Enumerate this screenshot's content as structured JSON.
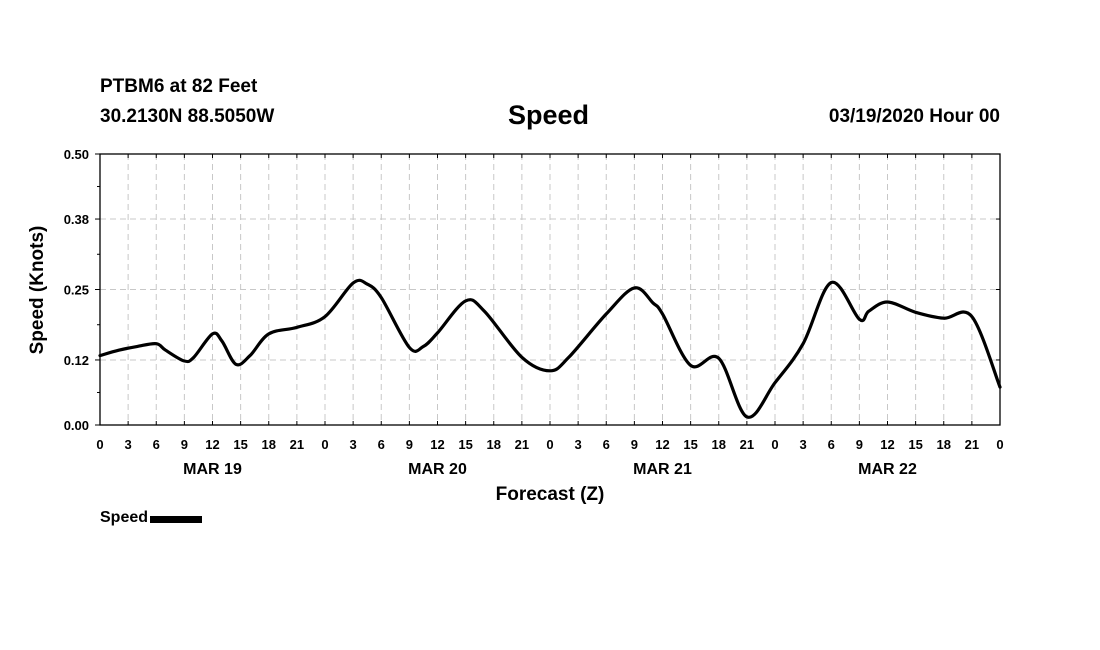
{
  "header": {
    "station": "PTBM6 at 82 Feet",
    "coords": "30.2130N 88.5050W",
    "title": "Speed",
    "runtime": "03/19/2020 Hour 00"
  },
  "chart_data": {
    "type": "line",
    "title": "Speed",
    "xlabel": "Forecast (Z)",
    "ylabel": "Speed (Knots)",
    "ylim": [
      0,
      0.5
    ],
    "yticks": [
      0.0,
      0.12,
      0.25,
      0.38,
      0.5
    ],
    "ytick_labels": [
      "0.00",
      "0.12",
      "0.25",
      "0.38",
      "0.50"
    ],
    "xlim": [
      0,
      96
    ],
    "xtick_hours": [
      0,
      3,
      6,
      9,
      12,
      15,
      18,
      21,
      24,
      27,
      30,
      33,
      36,
      39,
      42,
      45,
      48,
      51,
      54,
      57,
      60,
      63,
      66,
      69,
      72,
      75,
      78,
      81,
      84,
      87,
      90,
      93,
      96
    ],
    "xtick_labels": [
      "0",
      "3",
      "6",
      "9",
      "12",
      "15",
      "18",
      "21",
      "0",
      "3",
      "6",
      "9",
      "12",
      "15",
      "18",
      "21",
      "0",
      "3",
      "6",
      "9",
      "12",
      "15",
      "18",
      "21",
      "0",
      "3",
      "6",
      "9",
      "12",
      "15",
      "18",
      "21",
      "0"
    ],
    "date_labels": [
      {
        "hour": 12,
        "label": "MAR 19"
      },
      {
        "hour": 36,
        "label": "MAR 20"
      },
      {
        "hour": 60,
        "label": "MAR 21"
      },
      {
        "hour": 84,
        "label": "MAR 22"
      }
    ],
    "grid": true,
    "legend": "bottom-left",
    "series": [
      {
        "name": "Speed",
        "color": "#000000",
        "x": [
          0,
          2,
          4,
          6,
          7,
          9,
          10,
          12,
          13,
          14.5,
          16,
          18,
          21,
          24,
          27,
          28.5,
          30,
          33,
          34.5,
          36,
          39,
          41,
          45,
          48,
          50,
          54,
          57,
          59,
          60,
          63,
          66,
          69,
          72,
          75,
          78,
          81,
          82,
          84,
          87,
          90,
          93,
          96
        ],
        "values": [
          0.128,
          0.138,
          0.145,
          0.15,
          0.138,
          0.118,
          0.125,
          0.168,
          0.155,
          0.112,
          0.128,
          0.168,
          0.18,
          0.2,
          0.262,
          0.26,
          0.235,
          0.143,
          0.145,
          0.17,
          0.229,
          0.21,
          0.125,
          0.1,
          0.125,
          0.205,
          0.253,
          0.225,
          0.205,
          0.11,
          0.123,
          0.015,
          0.078,
          0.15,
          0.263,
          0.195,
          0.21,
          0.227,
          0.208,
          0.197,
          0.2,
          0.07
        ]
      }
    ]
  },
  "legend": {
    "label": "Speed"
  }
}
